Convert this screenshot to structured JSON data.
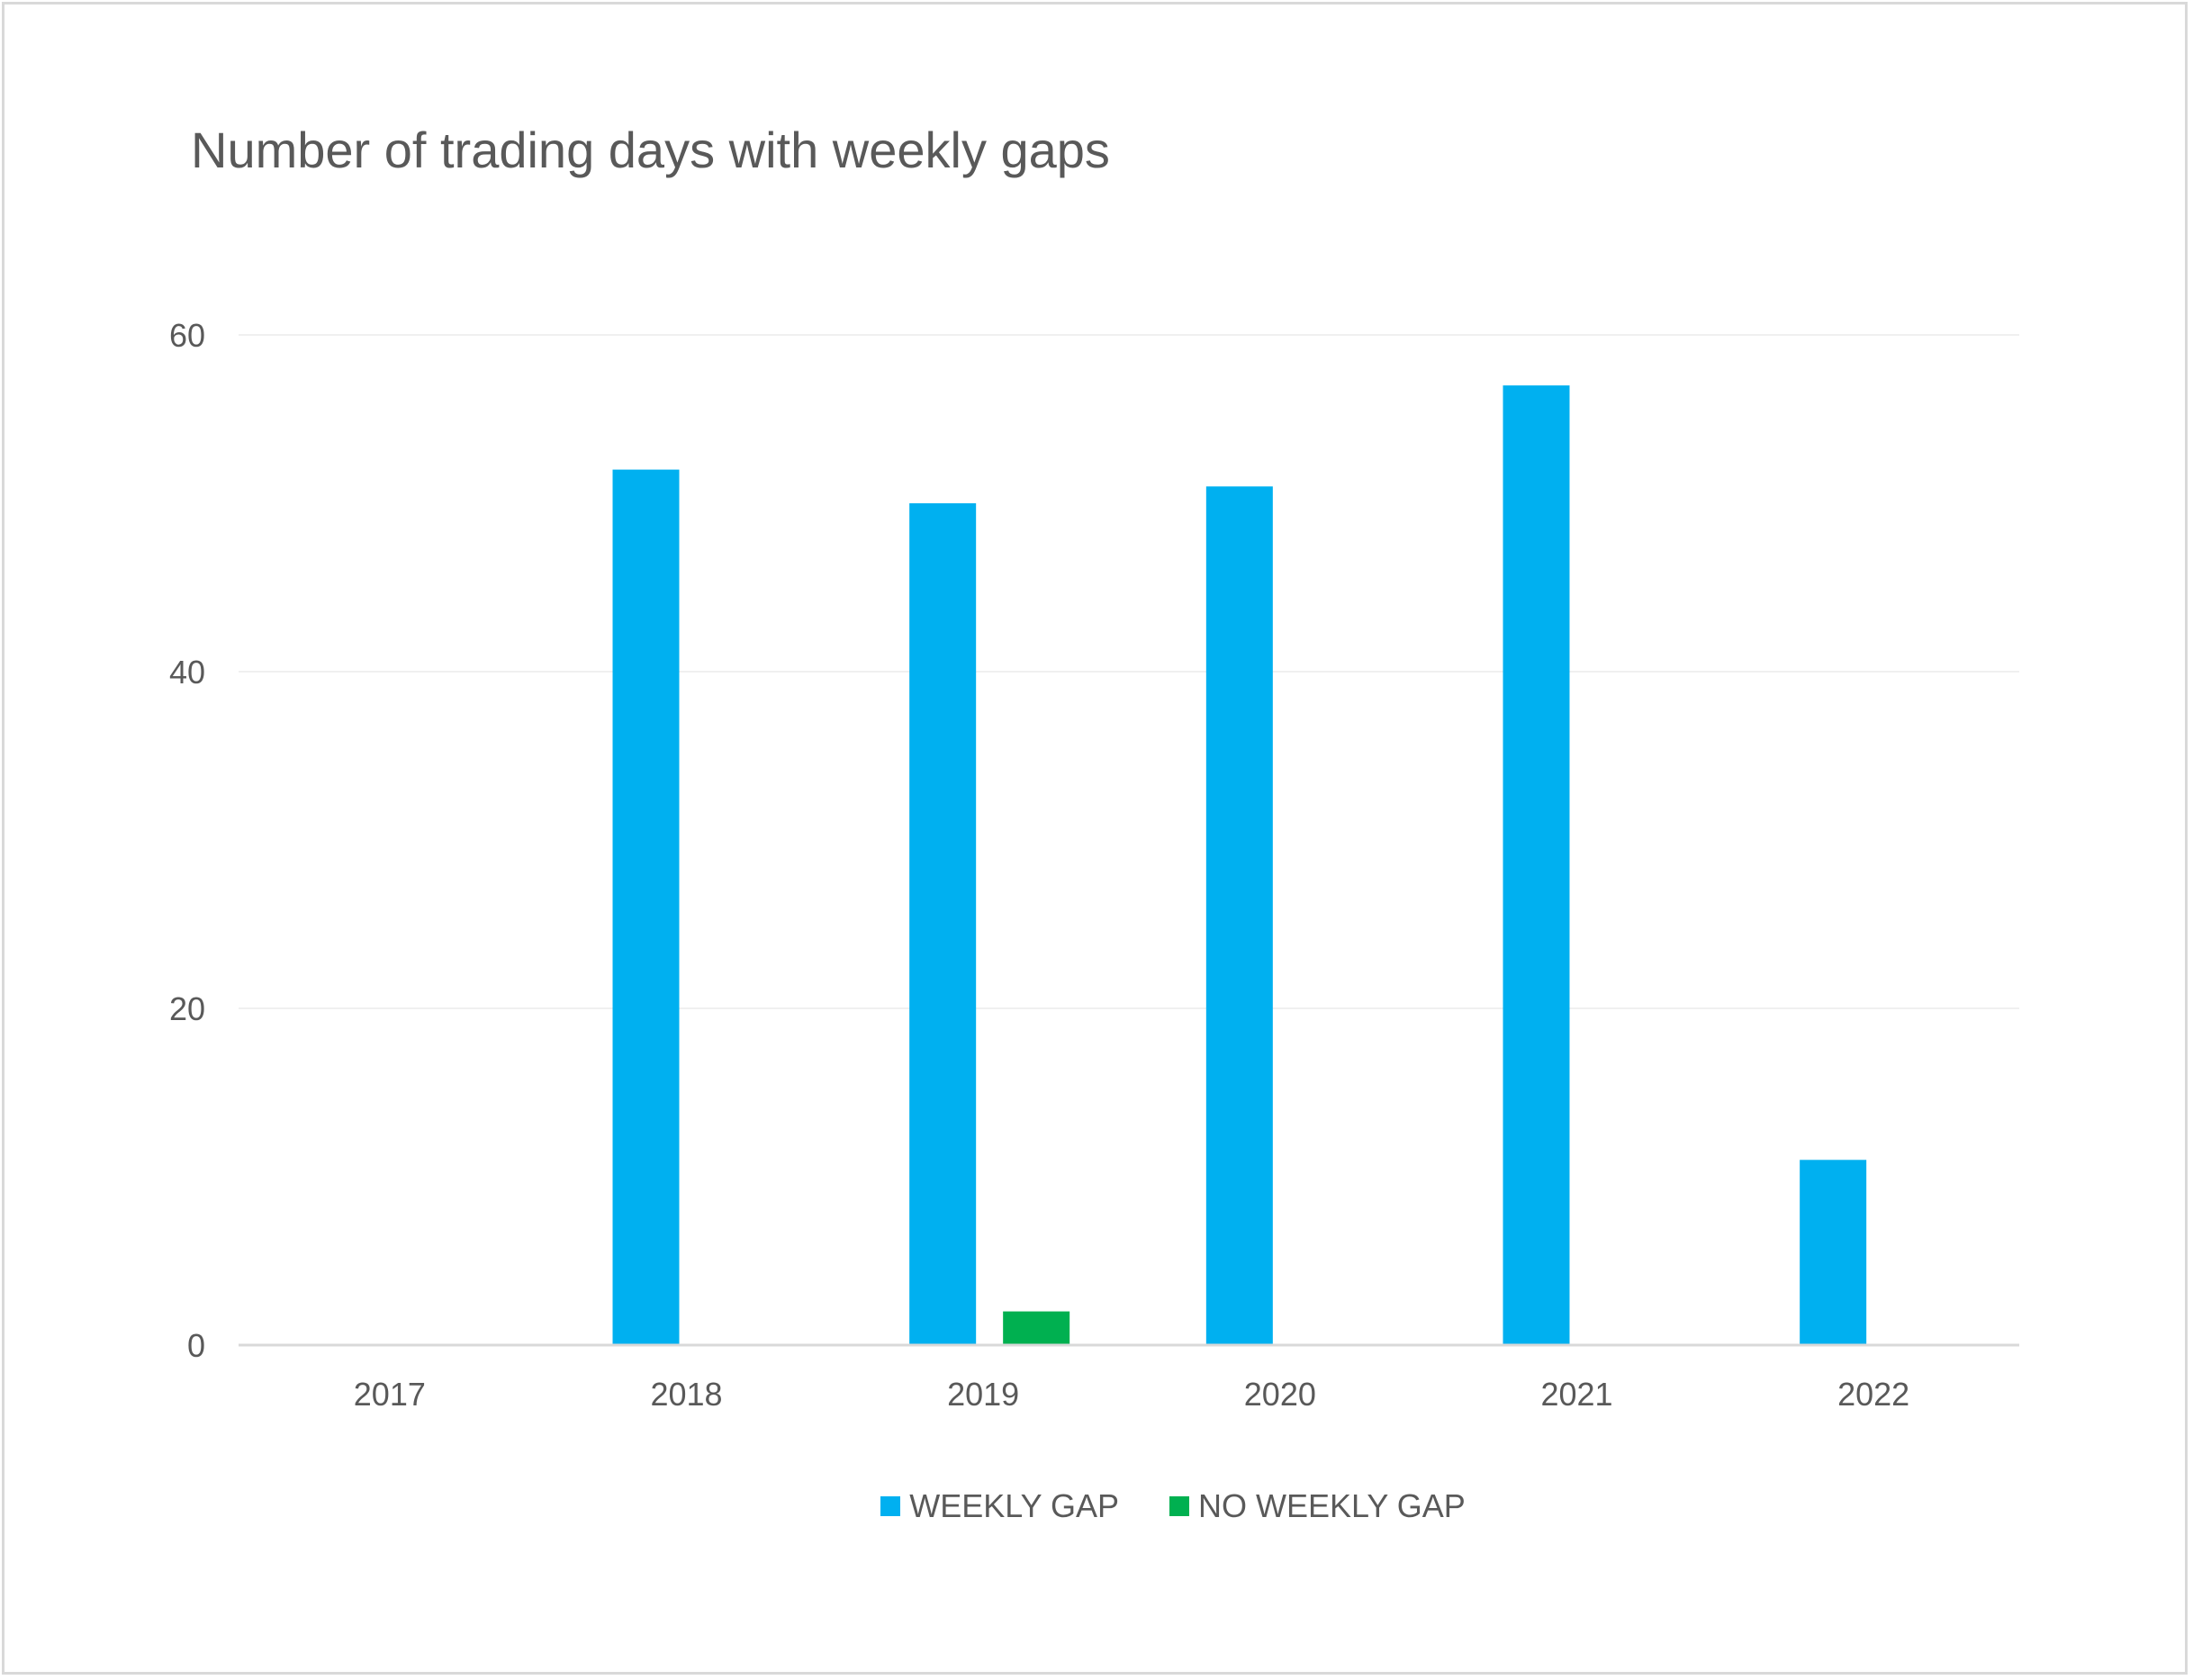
{
  "chart_data": {
    "type": "bar",
    "title": "Number of trading days with weekly gaps",
    "categories": [
      "2017",
      "2018",
      "2019",
      "2020",
      "2021",
      "2022"
    ],
    "series": [
      {
        "name": "WEEKLY GAP",
        "color": "#00b0f0",
        "values": [
          0,
          52,
          50,
          51,
          57,
          11
        ]
      },
      {
        "name": "NO WEEKLY GAP",
        "color": "#00b050",
        "values": [
          0,
          0,
          2,
          0,
          0,
          0
        ]
      }
    ],
    "ylim": [
      0,
      60
    ],
    "yticks": [
      0,
      20,
      40,
      60
    ],
    "grid": true,
    "legend_position": "bottom",
    "xlabel": "",
    "ylabel": ""
  }
}
